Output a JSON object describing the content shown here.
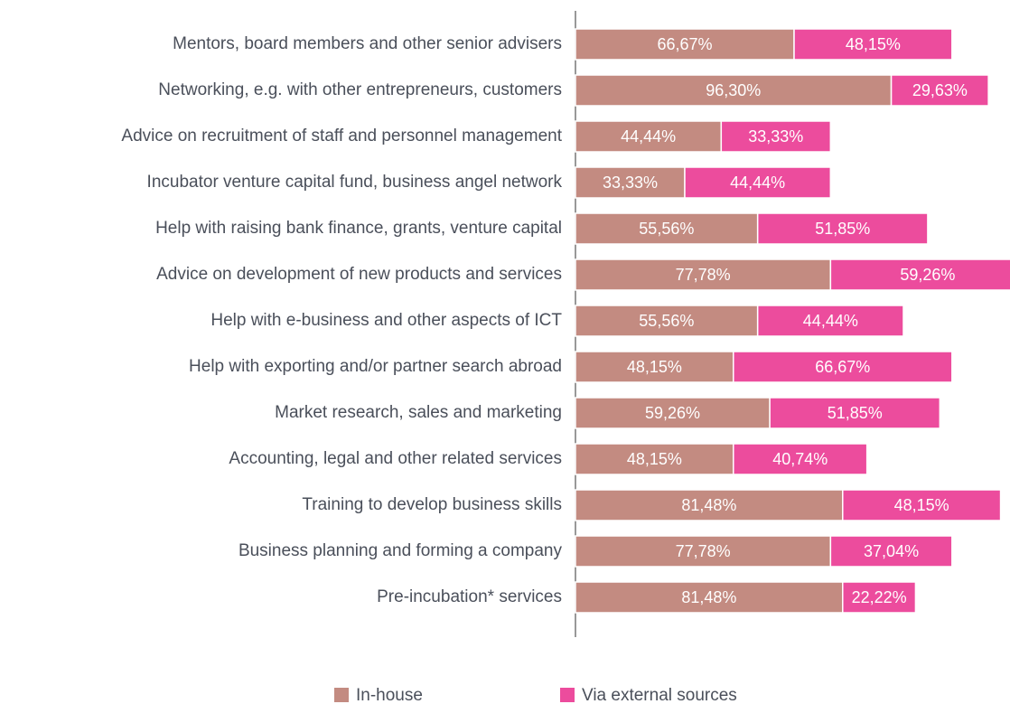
{
  "chart_data": {
    "type": "bar",
    "orientation": "horizontal",
    "stacked": true,
    "categories": [
      "Mentors, board members and other senior advisers",
      "Networking, e.g. with other entrepreneurs, customers",
      "Advice on recruitment of staff and personnel management",
      "Incubator venture capital fund, business angel network",
      "Help with raising bank finance, grants, venture capital",
      "Advice on development of new products and services",
      "Help with e-business and other aspects of ICT",
      "Help with exporting and/or partner search abroad",
      "Market research, sales and marketing",
      "Accounting, legal and other related services",
      "Training to develop business skills",
      "Business planning and forming a company",
      "Pre-incubation* services"
    ],
    "series": [
      {
        "name": "In-house",
        "color": "#c38b81",
        "values": [
          66.67,
          96.3,
          44.44,
          33.33,
          55.56,
          77.78,
          55.56,
          48.15,
          59.26,
          48.15,
          81.48,
          77.78,
          81.48
        ],
        "value_labels": [
          "66,67%",
          "96,30%",
          "44,44%",
          "33,33%",
          "55,56%",
          "77,78%",
          "55,56%",
          "48,15%",
          "59,26%",
          "48,15%",
          "81,48%",
          "77,78%",
          "81,48%"
        ]
      },
      {
        "name": "Via external sources",
        "color": "#ec4c9d",
        "values": [
          48.15,
          29.63,
          33.33,
          44.44,
          51.85,
          59.26,
          44.44,
          66.67,
          51.85,
          40.74,
          48.15,
          37.04,
          22.22
        ],
        "value_labels": [
          "48,15%",
          "29,63%",
          "33,33%",
          "44,44%",
          "51,85%",
          "59,26%",
          "44,44%",
          "66,67%",
          "51,85%",
          "40,74%",
          "48,15%",
          "37,04%",
          "22,22%"
        ]
      }
    ]
  }
}
